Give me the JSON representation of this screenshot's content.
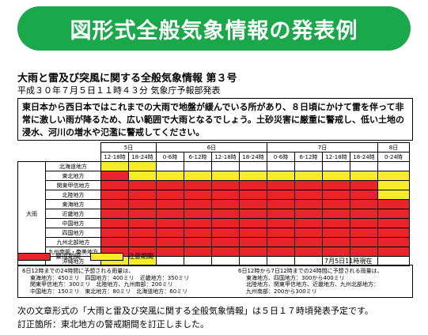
{
  "banner": {
    "title": "図形式全般気象情報の発表例"
  },
  "document": {
    "title": "大雨と雷及び突風に関する全般気象情報 第３号",
    "issued": "平成３０年７月５日１１時４３分 気象庁予報部発表",
    "summary": "東日本から西日本ではこれまでの大雨で地盤が緩んでいる所があり、８日頃にかけて雷を伴って非常に激しい雨が降るため、広い範囲で大雨となるでしょう。土砂災害に厳重に警戒し、低い土地の浸水、河川の増水や氾濫に警戒してください。"
  },
  "table": {
    "category": "大雨",
    "days": [
      {
        "label": "5日",
        "span": 2
      },
      {
        "label": "6日",
        "span": 4
      },
      {
        "label": "7日",
        "span": 4
      },
      {
        "label": "8日",
        "span": 1
      }
    ],
    "slots": [
      "12-18時",
      "18-24時",
      "0-6時",
      "6-12時",
      "12-18時",
      "18-24時",
      "0-6時",
      "6-12時",
      "12-18時",
      "18-24時",
      "0-24時"
    ],
    "rows": [
      {
        "region": "北海道地方",
        "cells": [
          "y",
          "y",
          "w",
          "w",
          "w",
          "w",
          "w",
          "w",
          "w",
          "w",
          "w"
        ]
      },
      {
        "region": "東北地方",
        "cells": [
          "r",
          "y",
          "y",
          "y",
          "y",
          "y",
          "y",
          "y",
          "y",
          "y",
          "y"
        ]
      },
      {
        "region": "関東甲信地方",
        "cells": [
          "r",
          "r",
          "r",
          "r",
          "r",
          "r",
          "r",
          "r",
          "r",
          "r",
          "y"
        ]
      },
      {
        "region": "北陸地方",
        "cells": [
          "r",
          "r",
          "r",
          "r",
          "r",
          "r",
          "r",
          "r",
          "r",
          "r",
          "y"
        ]
      },
      {
        "region": "東海地方",
        "cells": [
          "r",
          "r",
          "r",
          "r",
          "r",
          "r",
          "r",
          "r",
          "r",
          "r",
          "r"
        ]
      },
      {
        "region": "近畿地方",
        "cells": [
          "r",
          "r",
          "r",
          "r",
          "r",
          "r",
          "r",
          "r",
          "r",
          "r",
          "r"
        ]
      },
      {
        "region": "中国地方",
        "cells": [
          "r",
          "r",
          "r",
          "r",
          "r",
          "r",
          "r",
          "r",
          "r",
          "r",
          "r"
        ]
      },
      {
        "region": "四国地方",
        "cells": [
          "r",
          "r",
          "r",
          "r",
          "r",
          "r",
          "r",
          "r",
          "r",
          "r",
          "r"
        ]
      },
      {
        "region": "九州北部地方",
        "cells": [
          "r",
          "r",
          "r",
          "r",
          "r",
          "r",
          "r",
          "r",
          "r",
          "r",
          "r"
        ]
      },
      {
        "region": "九州南部・奄美地方",
        "cells": [
          "r",
          "r",
          "r",
          "r",
          "r",
          "r",
          "r",
          "r",
          "r",
          "r",
          "r"
        ]
      },
      {
        "region": "沖縄地方",
        "cells": [
          "y",
          "y",
          "w",
          "w",
          "w",
          "w",
          "w",
          "w",
          "w",
          "w",
          "w"
        ]
      }
    ],
    "colors": {
      "warning": "#e8232a",
      "caution": "#f7ec2a"
    }
  },
  "legend": {
    "warning_label": "警戒期間",
    "caution_label": "注意期間",
    "as_of": "7月5日11時現在"
  },
  "rainfall": {
    "left": {
      "heading": "6日12時までの24時間に予想される雨量は、",
      "lines": [
        "東海地方：450ミリ　四国地方：400ミリ　近畿地方：350ミリ",
        "関東甲信地方：300ミリ　北陸地方、九州南部：200ミリ",
        "中国地方：150ミリ　東北地方：80ミリ　北海道地方：60ミリ"
      ]
    },
    "right": {
      "heading": "6日12時から7日12時までの24時間に予想される雨量は、",
      "lines": [
        "東海地方、四国地方：300から400ミリ",
        "北陸地方、関東甲信地方、近畿地方、九州北部地方：",
        "九州南部：200から300ミリ"
      ]
    }
  },
  "footer": {
    "next": "次の文章形式の「大雨と雷及び突風に関する全般気象情報」は５日１７時頃発表予定です。",
    "correction": "訂正箇所：東北地方の警戒期間を訂正しました。"
  }
}
